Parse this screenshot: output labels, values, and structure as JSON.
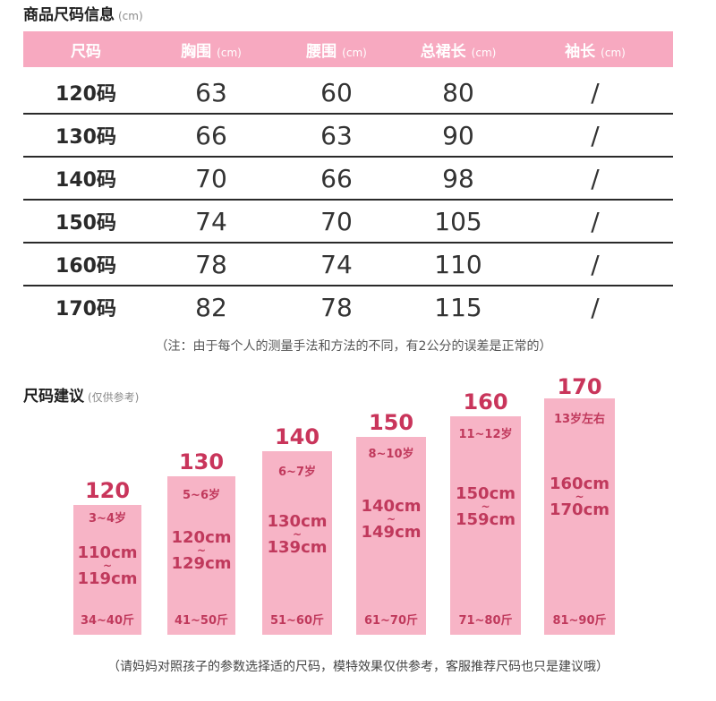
{
  "table_section": {
    "title": "商品尺码信息",
    "unit": "(cm)"
  },
  "table": {
    "headers": [
      {
        "label": "尺码",
        "unit": ""
      },
      {
        "label": "胸围",
        "unit": "(cm)"
      },
      {
        "label": "腰围",
        "unit": "(cm)"
      },
      {
        "label": "总裙长",
        "unit": "(cm)"
      },
      {
        "label": "袖长",
        "unit": "(cm)"
      }
    ],
    "rows": [
      [
        "120码",
        "63",
        "60",
        "80",
        "/"
      ],
      [
        "130码",
        "66",
        "63",
        "90",
        "/"
      ],
      [
        "140码",
        "70",
        "66",
        "98",
        "/"
      ],
      [
        "150码",
        "74",
        "70",
        "105",
        "/"
      ],
      [
        "160码",
        "78",
        "74",
        "110",
        "/"
      ],
      [
        "170码",
        "82",
        "78",
        "115",
        "/"
      ]
    ]
  },
  "table_note": "（注：由于每个人的测量手法和方法的不同，有2公分的误差是正常的）",
  "suggest_section": {
    "title": "尺码建议",
    "sub": "(仅供参考)"
  },
  "bars": [
    {
      "size": "120",
      "age": "3~4岁",
      "height_from": "110cm",
      "tilde": "~",
      "height_to": "119cm",
      "weight": "34~40斤"
    },
    {
      "size": "130",
      "age": "5~6岁",
      "height_from": "120cm",
      "tilde": "~",
      "height_to": "129cm",
      "weight": "41~50斤"
    },
    {
      "size": "140",
      "age": "6~7岁",
      "height_from": "130cm",
      "tilde": "~",
      "height_to": "139cm",
      "weight": "51~60斤"
    },
    {
      "size": "150",
      "age": "8~10岁",
      "height_from": "140cm",
      "tilde": "~",
      "height_to": "149cm",
      "weight": "61~70斤"
    },
    {
      "size": "160",
      "age": "11~12岁",
      "height_from": "150cm",
      "tilde": "~",
      "height_to": "159cm",
      "weight": "71~80斤"
    },
    {
      "size": "170",
      "age": "13岁左右",
      "height_from": "160cm",
      "tilde": "~",
      "height_to": "170cm",
      "weight": "81~90斤"
    }
  ],
  "footer_note": "（请妈妈对照孩子的参数选择适的尺码，模特效果仅供参考，客服推荐尺码也只是建议哦）",
  "colors": {
    "header_bg": "#f7a9c0",
    "bar_bg": "#f7b4c6",
    "accent": "#c9355b"
  }
}
